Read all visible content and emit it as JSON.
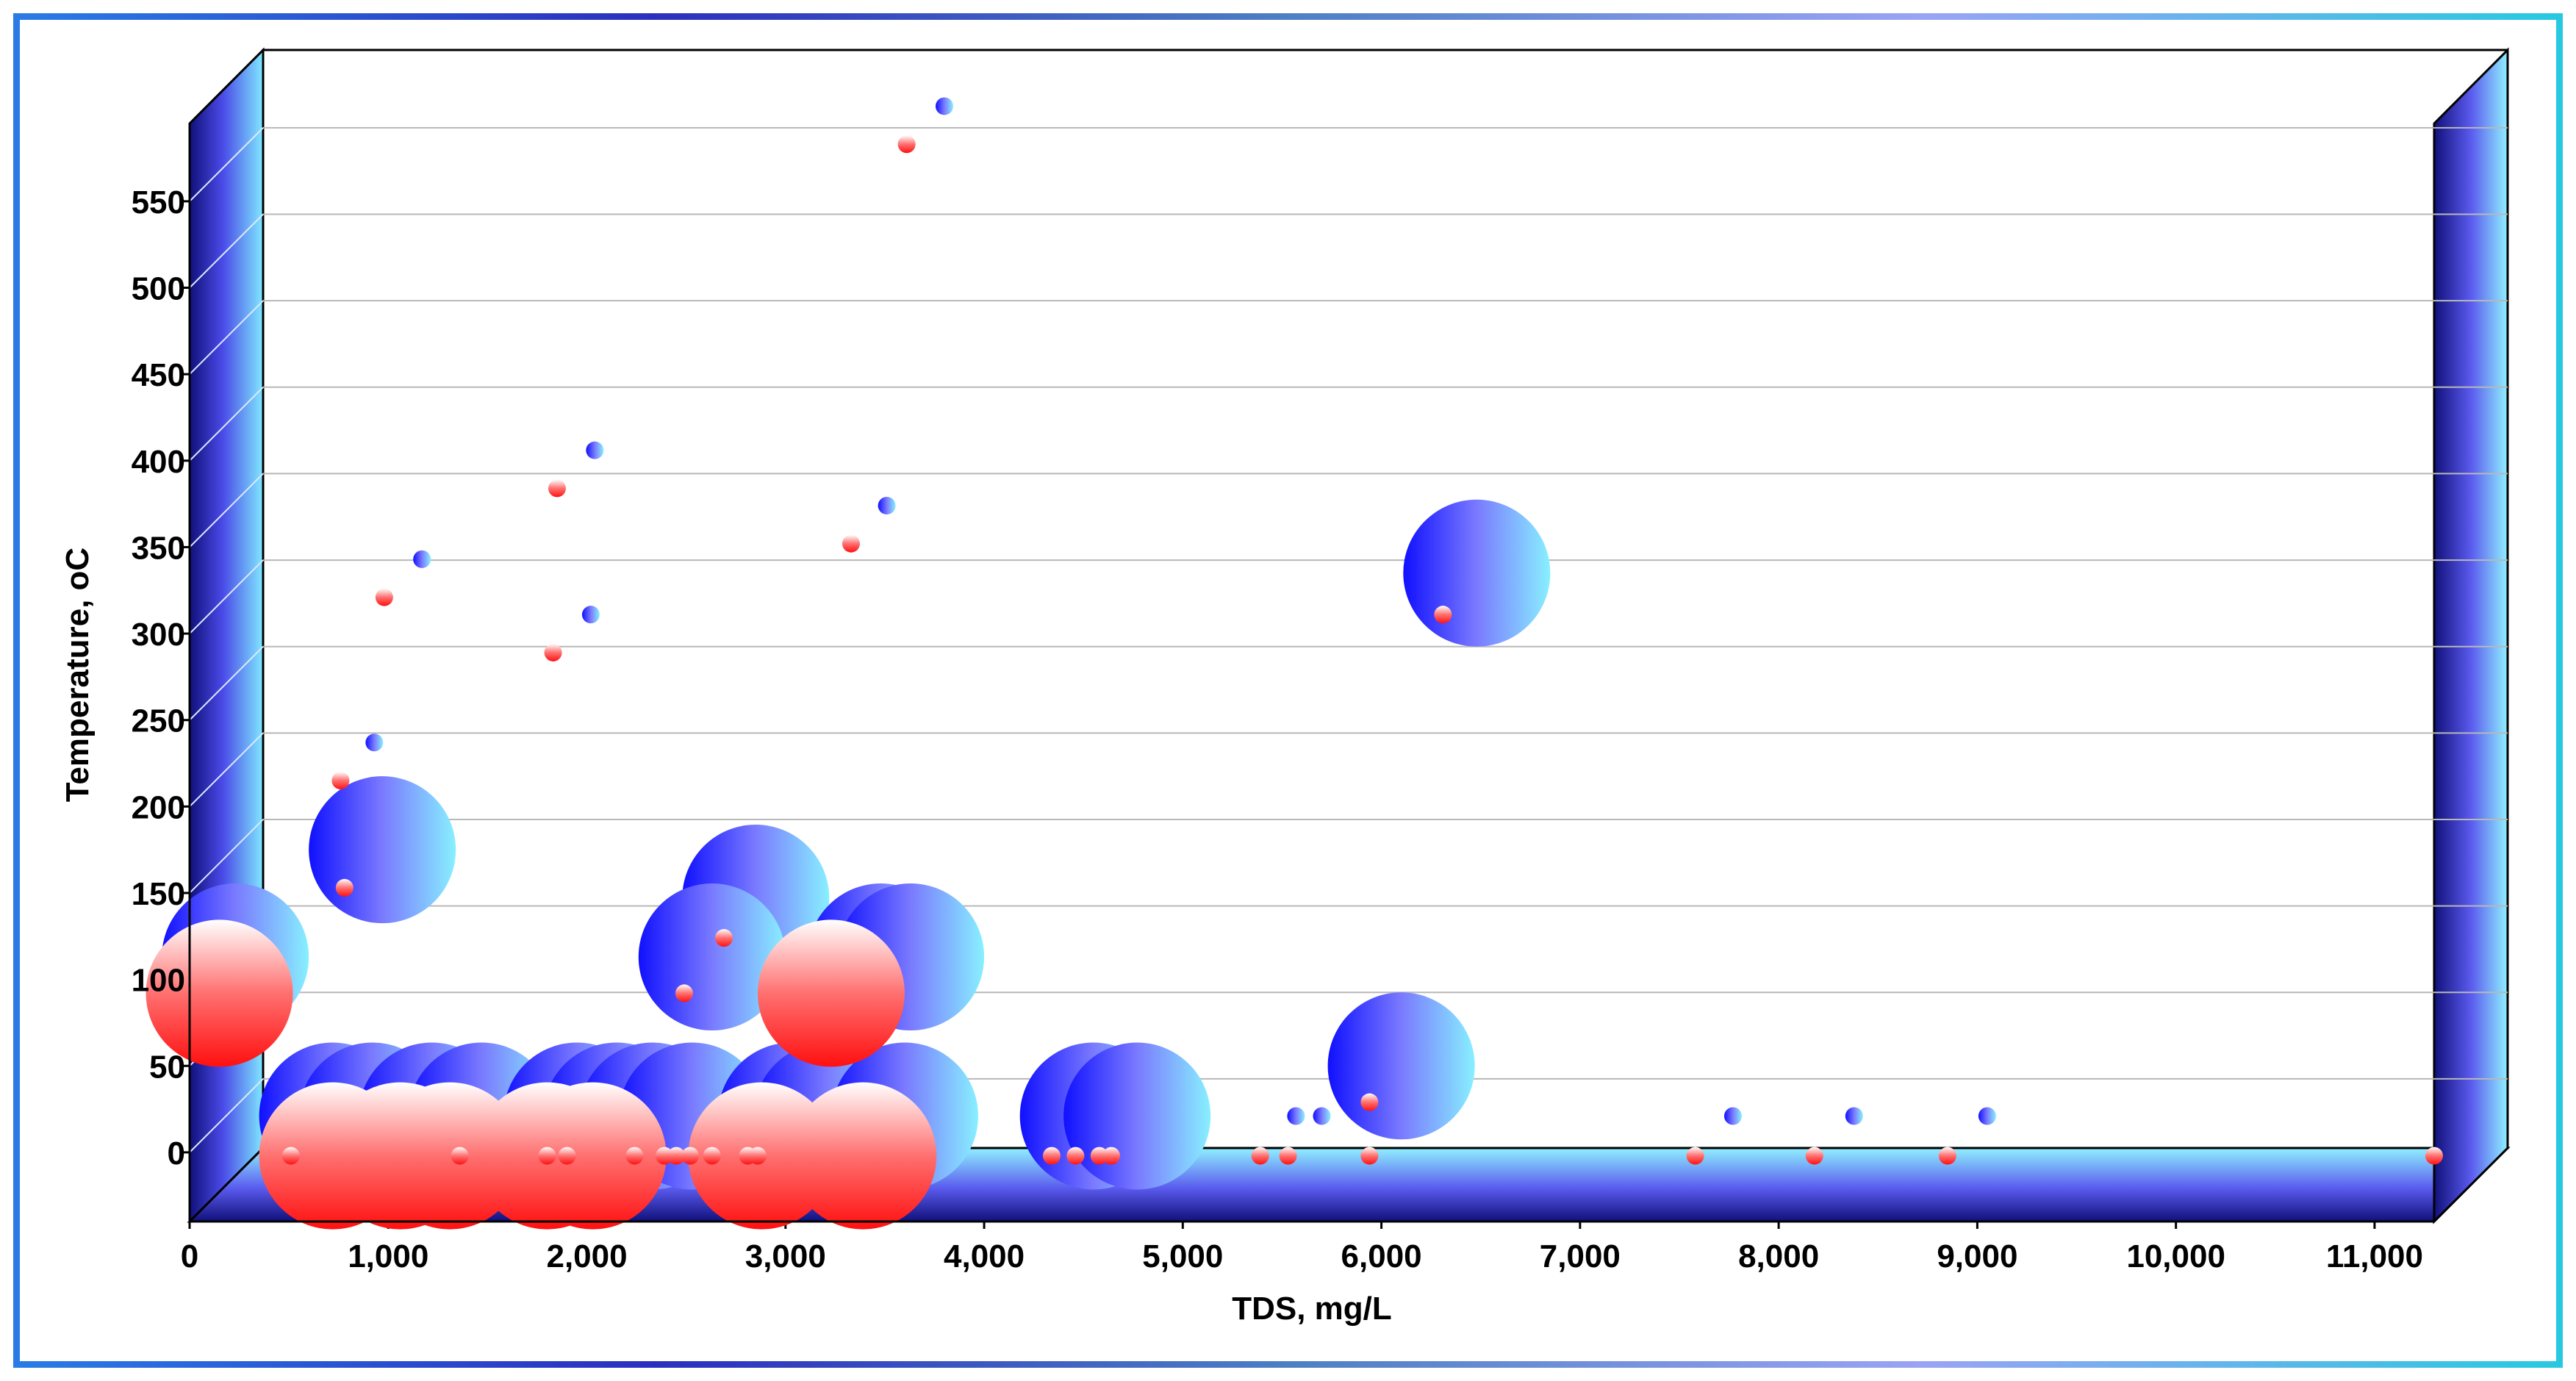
{
  "chart_data": {
    "type": "bubble",
    "title": "",
    "xlabel": "TDS, mg/L",
    "ylabel": "Temperature, oC",
    "xlim": [
      0,
      11300
    ],
    "ylim": [
      -40,
      595
    ],
    "x_ticks": [
      0,
      1000,
      2000,
      3000,
      4000,
      5000,
      6000,
      7000,
      8000,
      9000,
      10000,
      11000
    ],
    "x_tick_labels": [
      "0",
      "1,000",
      "2,000",
      "3,000",
      "4,000",
      "5,000",
      "6,000",
      "7,000",
      "8,000",
      "9,000",
      "10,000",
      "11,000"
    ],
    "y_ticks": [
      0,
      50,
      100,
      150,
      200,
      250,
      300,
      350,
      400,
      450,
      500,
      550
    ],
    "y_tick_labels": [
      "0",
      "50",
      "100",
      "150",
      "200",
      "250",
      "300",
      "350",
      "400",
      "450",
      "500",
      "550"
    ],
    "grid": true,
    "series": [
      {
        "name": "Blue",
        "color": "#1a1aff",
        "points": [
          {
            "x": 3800,
            "y": 605,
            "size": 1
          },
          {
            "x": 2040,
            "y": 406,
            "size": 1
          },
          {
            "x": 3510,
            "y": 374,
            "size": 1
          },
          {
            "x": 1170,
            "y": 343,
            "size": 1
          },
          {
            "x": 2020,
            "y": 311,
            "size": 1
          },
          {
            "x": 930,
            "y": 237,
            "size": 1
          },
          {
            "x": 6480,
            "y": 335,
            "size": 10
          },
          {
            "x": 970,
            "y": 175,
            "size": 10
          },
          {
            "x": 230,
            "y": 113,
            "size": 10
          },
          {
            "x": 2850,
            "y": 147,
            "size": 10
          },
          {
            "x": 2630,
            "y": 113,
            "size": 10
          },
          {
            "x": 3480,
            "y": 113,
            "size": 10
          },
          {
            "x": 3630,
            "y": 113,
            "size": 10
          },
          {
            "x": 6100,
            "y": 50,
            "size": 10
          },
          {
            "x": 720,
            "y": 21,
            "size": 10
          },
          {
            "x": 920,
            "y": 21,
            "size": 10
          },
          {
            "x": 1220,
            "y": 21,
            "size": 10
          },
          {
            "x": 1470,
            "y": 21,
            "size": 10
          },
          {
            "x": 1950,
            "y": 21,
            "size": 10
          },
          {
            "x": 2150,
            "y": 21,
            "size": 10
          },
          {
            "x": 2330,
            "y": 21,
            "size": 10
          },
          {
            "x": 2530,
            "y": 21,
            "size": 10
          },
          {
            "x": 3030,
            "y": 21,
            "size": 10
          },
          {
            "x": 3210,
            "y": 21,
            "size": 10
          },
          {
            "x": 3600,
            "y": 21,
            "size": 10
          },
          {
            "x": 4550,
            "y": 21,
            "size": 10
          },
          {
            "x": 4770,
            "y": 21,
            "size": 10
          },
          {
            "x": 5570,
            "y": 21,
            "size": 1
          },
          {
            "x": 5700,
            "y": 21,
            "size": 1
          },
          {
            "x": 7770,
            "y": 21,
            "size": 1
          },
          {
            "x": 8380,
            "y": 21,
            "size": 1
          },
          {
            "x": 9050,
            "y": 21,
            "size": 1
          }
        ]
      },
      {
        "name": "Red",
        "color": "#ff2020",
        "points": [
          {
            "x": 3610,
            "y": 583,
            "size": 1
          },
          {
            "x": 1850,
            "y": 384,
            "size": 1
          },
          {
            "x": 3330,
            "y": 352,
            "size": 1
          },
          {
            "x": 980,
            "y": 321,
            "size": 1
          },
          {
            "x": 1830,
            "y": 289,
            "size": 1
          },
          {
            "x": 760,
            "y": 215,
            "size": 1
          },
          {
            "x": 780,
            "y": 153,
            "size": 1
          },
          {
            "x": 6310,
            "y": 311,
            "size": 1
          },
          {
            "x": 2690,
            "y": 124,
            "size": 1
          },
          {
            "x": 2490,
            "y": 92,
            "size": 1
          },
          {
            "x": 5940,
            "y": 29,
            "size": 1
          },
          {
            "x": 150,
            "y": 92,
            "size": 10
          },
          {
            "x": 3230,
            "y": 92,
            "size": 10
          },
          {
            "x": 720,
            "y": -2,
            "size": 10
          },
          {
            "x": 1060,
            "y": -2,
            "size": 10
          },
          {
            "x": 1310,
            "y": -2,
            "size": 10
          },
          {
            "x": 1800,
            "y": -2,
            "size": 10
          },
          {
            "x": 2030,
            "y": -2,
            "size": 10
          },
          {
            "x": 2880,
            "y": -2,
            "size": 10
          },
          {
            "x": 3390,
            "y": -2,
            "size": 10
          },
          {
            "x": 510,
            "y": -2,
            "size": 1
          },
          {
            "x": 1360,
            "y": -2,
            "size": 1
          },
          {
            "x": 1800,
            "y": -2,
            "size": 1
          },
          {
            "x": 1900,
            "y": -2,
            "size": 1
          },
          {
            "x": 2240,
            "y": -2,
            "size": 1
          },
          {
            "x": 2390,
            "y": -2,
            "size": 1
          },
          {
            "x": 2450,
            "y": -2,
            "size": 1
          },
          {
            "x": 2520,
            "y": -2,
            "size": 1
          },
          {
            "x": 2630,
            "y": -2,
            "size": 1
          },
          {
            "x": 2810,
            "y": -2,
            "size": 1
          },
          {
            "x": 2860,
            "y": -2,
            "size": 1
          },
          {
            "x": 4340,
            "y": -2,
            "size": 1
          },
          {
            "x": 4460,
            "y": -2,
            "size": 1
          },
          {
            "x": 4580,
            "y": -2,
            "size": 1
          },
          {
            "x": 4640,
            "y": -2,
            "size": 1
          },
          {
            "x": 5390,
            "y": -2,
            "size": 1
          },
          {
            "x": 5530,
            "y": -2,
            "size": 1
          },
          {
            "x": 5940,
            "y": -2,
            "size": 1
          },
          {
            "x": 7580,
            "y": -2,
            "size": 1
          },
          {
            "x": 8180,
            "y": -2,
            "size": 1
          },
          {
            "x": 8850,
            "y": -2,
            "size": 1
          },
          {
            "x": 11300,
            "y": -2,
            "size": 1
          }
        ]
      }
    ]
  }
}
